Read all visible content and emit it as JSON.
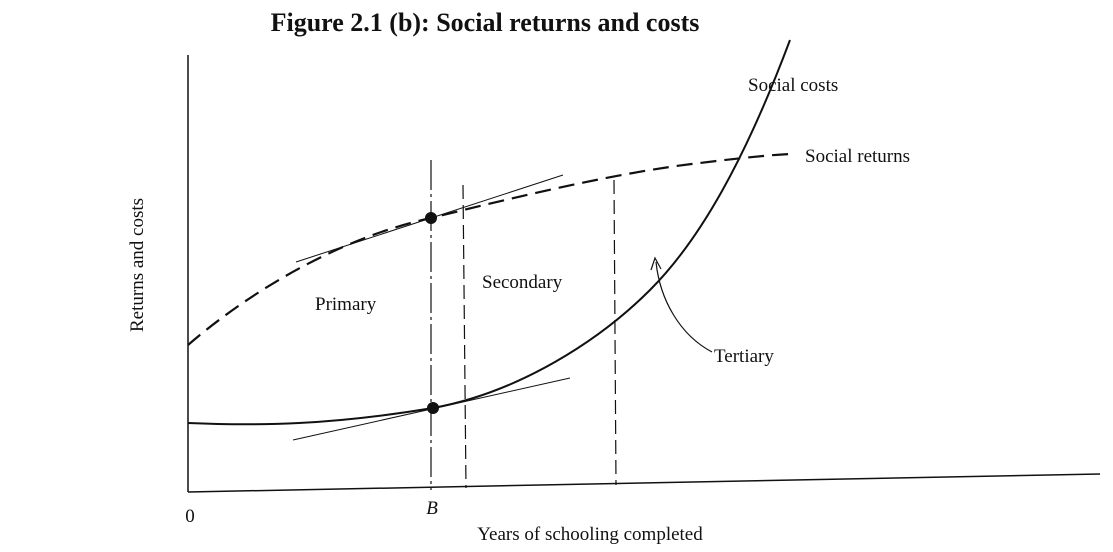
{
  "figure": {
    "title": "Figure 2.1 (b): Social returns and costs",
    "y_axis_label": "Returns and costs",
    "x_axis_label": "Years of schooling completed",
    "x_ticks": [
      "0",
      "B"
    ],
    "curves": {
      "costs": "Social costs",
      "returns": "Social returns"
    },
    "regions": {
      "primary": "Primary",
      "secondary": "Secondary",
      "tertiary": "Tertiary"
    }
  }
}
